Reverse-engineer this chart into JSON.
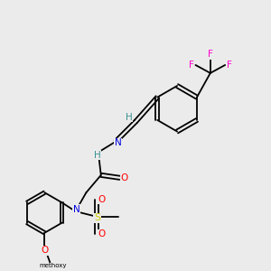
{
  "bg_color": "#ebebeb",
  "colors": {
    "C": "#000000",
    "H": "#3a9090",
    "N": "#0000e0",
    "O": "#ff0000",
    "S": "#cccc00",
    "F": "#ff00cc"
  },
  "figsize": [
    3.0,
    3.0
  ],
  "dpi": 100
}
